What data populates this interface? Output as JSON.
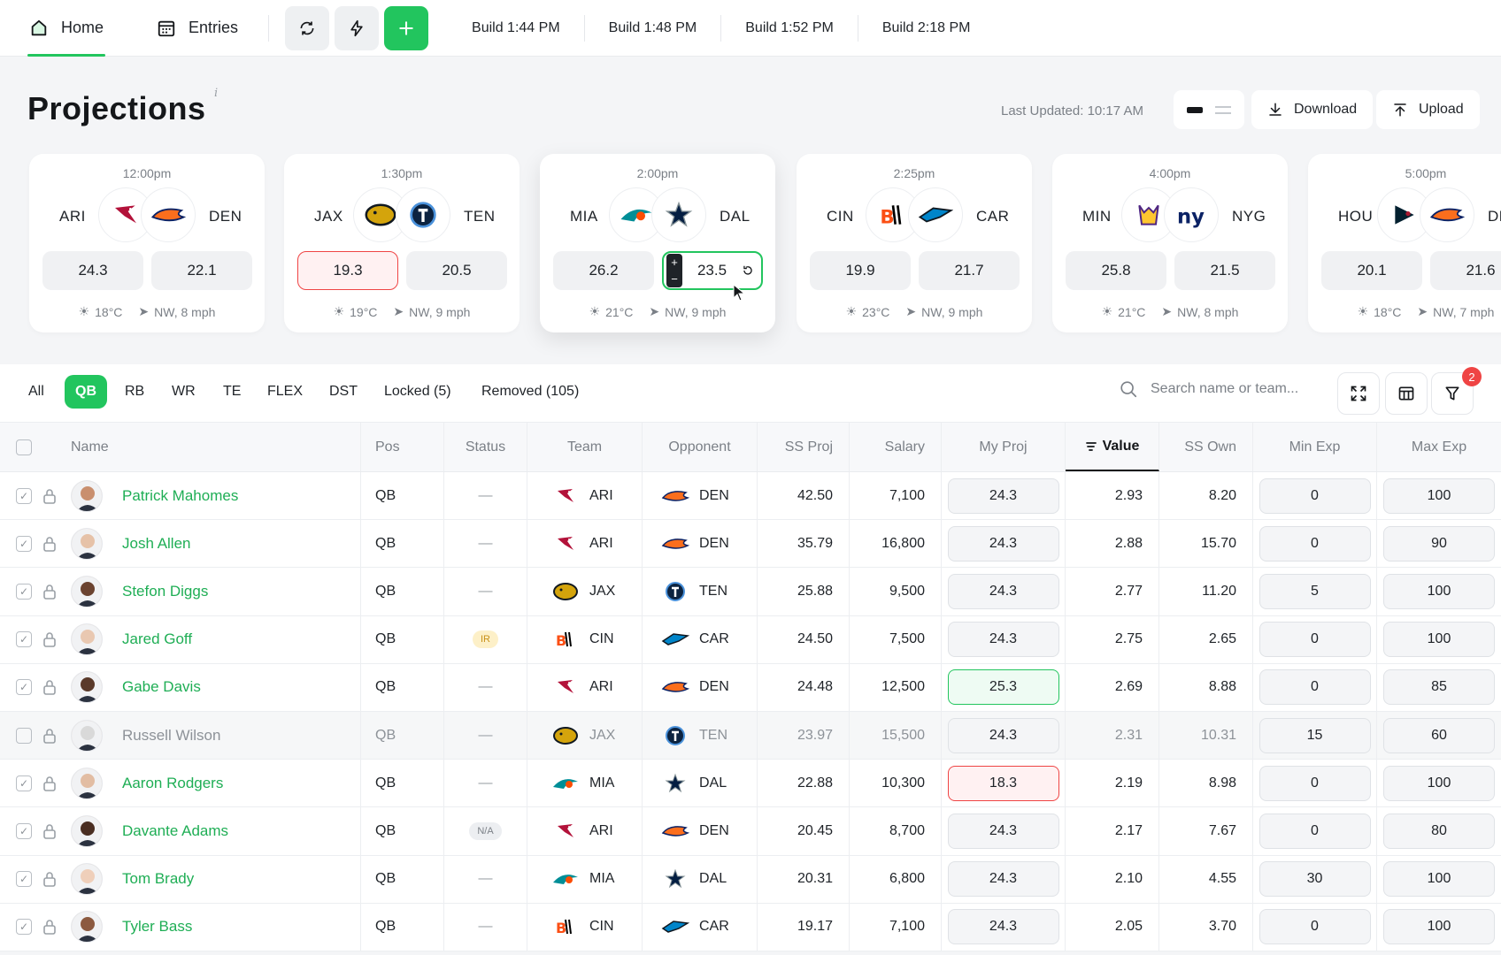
{
  "nav": {
    "home": "Home",
    "entries": "Entries",
    "builds": [
      "Build 1:44 PM",
      "Build 1:48 PM",
      "Build 1:52 PM",
      "Build 2:18 PM"
    ]
  },
  "header": {
    "title": "Projections",
    "info": "i",
    "last_updated": "Last Updated: 10:17 AM",
    "download": "Download",
    "upload": "Upload"
  },
  "games": [
    {
      "time": "12:00pm",
      "home": "ARI",
      "away": "DEN",
      "home_score": "24.3",
      "away_score": "22.1",
      "temp": "18°C",
      "wind": "NW, 8 mph"
    },
    {
      "time": "1:30pm",
      "home": "JAX",
      "away": "TEN",
      "home_score": "19.3",
      "away_score": "20.5",
      "temp": "19°C",
      "wind": "NW, 9 mph"
    },
    {
      "time": "2:00pm",
      "home": "MIA",
      "away": "DAL",
      "home_score": "26.2",
      "away_score": "23.5",
      "temp": "21°C",
      "wind": "NW, 9 mph"
    },
    {
      "time": "2:25pm",
      "home": "CIN",
      "away": "CAR",
      "home_score": "19.9",
      "away_score": "21.7",
      "temp": "23°C",
      "wind": "NW, 9 mph"
    },
    {
      "time": "4:00pm",
      "home": "MIN",
      "away": "NYG",
      "home_score": "25.8",
      "away_score": "21.5",
      "temp": "21°C",
      "wind": "NW, 8 mph"
    },
    {
      "time": "5:00pm",
      "home": "HOU",
      "away": "DE",
      "home_score": "20.1",
      "away_score": "21.6",
      "temp": "18°C",
      "wind": "NW, 7 mph"
    }
  ],
  "filters": {
    "tabs": [
      "All",
      "QB",
      "RB",
      "WR",
      "TE",
      "FLEX",
      "DST",
      "Locked (5)",
      "Removed (105)"
    ],
    "search_placeholder": "Search name or team...",
    "filter_badge": "2"
  },
  "table": {
    "columns": [
      "Name",
      "Pos",
      "Status",
      "Team",
      "Opponent",
      "SS Proj",
      "Salary",
      "My Proj",
      "Value",
      "SS Own",
      "Min Exp",
      "Max Exp"
    ],
    "rows": [
      {
        "name": "Patrick Mahomes",
        "pos": "QB",
        "status": "—",
        "team": "ARI",
        "opp": "DEN",
        "ssproj": "42.50",
        "salary": "7,100",
        "myproj": "24.3",
        "value": "2.93",
        "ssown": "8.20",
        "min": "0",
        "max": "100"
      },
      {
        "name": "Josh Allen",
        "pos": "QB",
        "status": "—",
        "team": "ARI",
        "opp": "DEN",
        "ssproj": "35.79",
        "salary": "16,800",
        "myproj": "24.3",
        "value": "2.88",
        "ssown": "15.70",
        "min": "0",
        "max": "90"
      },
      {
        "name": "Stefon Diggs",
        "pos": "QB",
        "status": "—",
        "team": "JAX",
        "opp": "TEN",
        "ssproj": "25.88",
        "salary": "9,500",
        "myproj": "24.3",
        "value": "2.77",
        "ssown": "11.20",
        "min": "5",
        "max": "100"
      },
      {
        "name": "Jared Goff",
        "pos": "QB",
        "status": "IR",
        "team": "CIN",
        "opp": "CAR",
        "ssproj": "24.50",
        "salary": "7,500",
        "myproj": "24.3",
        "value": "2.75",
        "ssown": "2.65",
        "min": "0",
        "max": "100"
      },
      {
        "name": "Gabe Davis",
        "pos": "QB",
        "status": "—",
        "team": "ARI",
        "opp": "DEN",
        "ssproj": "24.48",
        "salary": "12,500",
        "myproj": "25.3",
        "value": "2.69",
        "ssown": "8.88",
        "min": "0",
        "max": "85"
      },
      {
        "name": "Russell Wilson",
        "pos": "QB",
        "status": "—",
        "team": "JAX",
        "opp": "TEN",
        "ssproj": "23.97",
        "salary": "15,500",
        "myproj": "24.3",
        "value": "2.31",
        "ssown": "10.31",
        "min": "15",
        "max": "60"
      },
      {
        "name": "Aaron Rodgers",
        "pos": "QB",
        "status": "—",
        "team": "MIA",
        "opp": "DAL",
        "ssproj": "22.88",
        "salary": "10,300",
        "myproj": "18.3",
        "value": "2.19",
        "ssown": "8.98",
        "min": "0",
        "max": "100"
      },
      {
        "name": "Davante Adams",
        "pos": "QB",
        "status": "N/A",
        "team": "ARI",
        "opp": "DEN",
        "ssproj": "20.45",
        "salary": "8,700",
        "myproj": "24.3",
        "value": "2.17",
        "ssown": "7.67",
        "min": "0",
        "max": "80"
      },
      {
        "name": "Tom Brady",
        "pos": "QB",
        "status": "—",
        "team": "MIA",
        "opp": "DAL",
        "ssproj": "20.31",
        "salary": "6,800",
        "myproj": "24.3",
        "value": "2.10",
        "ssown": "4.55",
        "min": "30",
        "max": "100"
      },
      {
        "name": "Tyler Bass",
        "pos": "QB",
        "status": "—",
        "team": "CIN",
        "opp": "CAR",
        "ssproj": "19.17",
        "salary": "7,100",
        "myproj": "24.3",
        "value": "2.05",
        "ssown": "3.70",
        "min": "0",
        "max": "100"
      }
    ]
  },
  "colors": {
    "accent": "#22c55e",
    "danger": "#ef4444",
    "link": "#1fae55"
  }
}
